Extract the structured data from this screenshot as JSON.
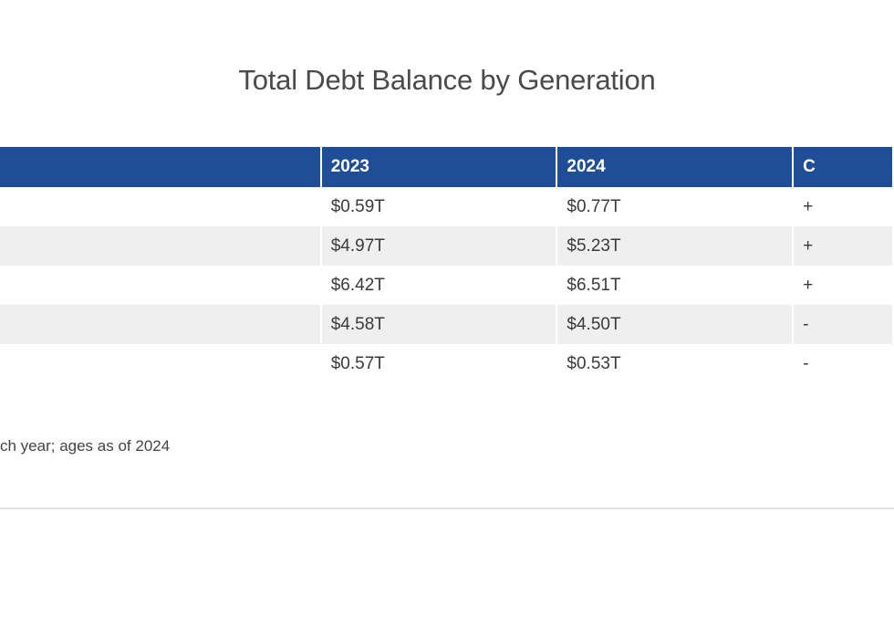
{
  "title": "Total Debt Balance by Generation",
  "table": {
    "headers": [
      "",
      "2023",
      "2024",
      "C"
    ],
    "rows": [
      {
        "generation": "",
        "y2023": "$0.59T",
        "y2024": "$0.77T",
        "change": "+"
      },
      {
        "generation": "",
        "y2023": "$4.97T",
        "y2024": "$5.23T",
        "change": "+"
      },
      {
        "generation": "",
        "y2023": "$6.42T",
        "y2024": "$6.51T",
        "change": "+"
      },
      {
        "generation": "",
        "y2023": "$4.58T",
        "y2024": "$4.50T",
        "change": "-"
      },
      {
        "generation": "",
        "y2023": "$0.57T",
        "y2024": "$0.53T",
        "change": "-"
      }
    ]
  },
  "note": "ch year; ages as of 2024",
  "colors": {
    "header_bg": "#1f4e96",
    "header_text": "#ffffff",
    "alt_row_bg": "#efefef"
  }
}
